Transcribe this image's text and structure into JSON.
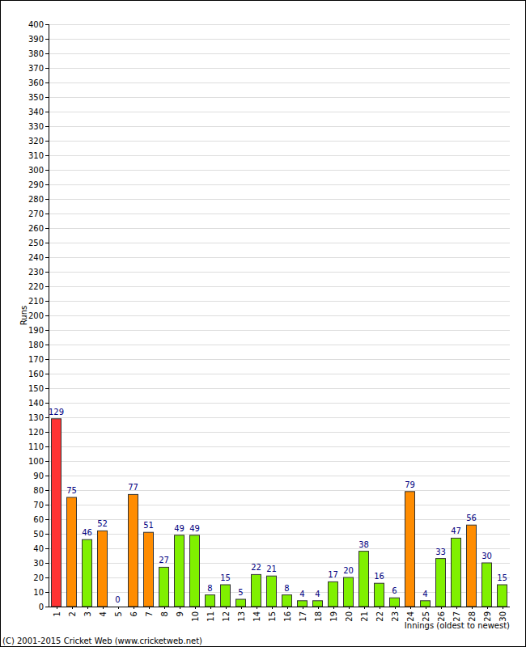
{
  "chart_data": {
    "type": "bar",
    "categories": [
      "1",
      "2",
      "3",
      "4",
      "5",
      "6",
      "7",
      "8",
      "9",
      "10",
      "11",
      "12",
      "13",
      "14",
      "15",
      "16",
      "17",
      "18",
      "19",
      "20",
      "21",
      "22",
      "23",
      "24",
      "25",
      "26",
      "27",
      "28",
      "29",
      "30"
    ],
    "values": [
      129,
      75,
      46,
      52,
      0,
      77,
      51,
      27,
      49,
      49,
      8,
      15,
      5,
      22,
      21,
      8,
      4,
      4,
      17,
      20,
      38,
      16,
      6,
      79,
      4,
      33,
      47,
      56,
      30,
      15
    ],
    "colors": [
      "#ff3333",
      "#ff8c00",
      "#80f000",
      "#ff8c00",
      "#80f000",
      "#ff8c00",
      "#ff8c00",
      "#80f000",
      "#80f000",
      "#80f000",
      "#80f000",
      "#80f000",
      "#80f000",
      "#80f000",
      "#80f000",
      "#80f000",
      "#80f000",
      "#80f000",
      "#80f000",
      "#80f000",
      "#80f000",
      "#80f000",
      "#80f000",
      "#ff8c00",
      "#80f000",
      "#80f000",
      "#80f000",
      "#ff8c00",
      "#80f000",
      "#80f000"
    ],
    "ylabel": "Runs",
    "xlabel": "Innings (oldest to newest)",
    "annotations": [
      "(C) 2001-2015 Cricket Web (www.cricketweb.net)"
    ],
    "ylim": [
      0,
      400
    ],
    "yticks": [
      0,
      10,
      20,
      30,
      40,
      50,
      60,
      70,
      80,
      90,
      100,
      110,
      120,
      130,
      140,
      150,
      160,
      170,
      180,
      190,
      200,
      210,
      220,
      230,
      240,
      250,
      260,
      270,
      280,
      290,
      300,
      310,
      320,
      330,
      340,
      350,
      360,
      370,
      380,
      390,
      400
    ],
    "grid": true,
    "data_labels": true
  }
}
